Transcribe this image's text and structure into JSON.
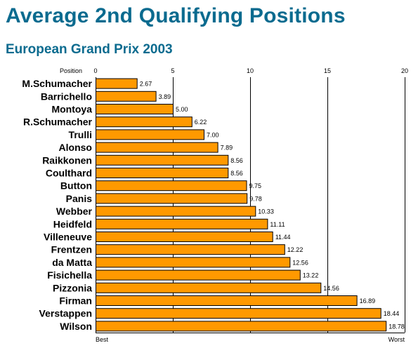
{
  "chart_data": {
    "type": "bar",
    "orientation": "horizontal",
    "title": "Average 2nd Qualifying Positions",
    "subtitle": "European Grand Prix 2003",
    "axis_title": "Position",
    "xlim": [
      0,
      20
    ],
    "xticks": [
      0,
      5,
      10,
      15,
      20
    ],
    "x_end_labels": {
      "min": "Best",
      "max": "Worst"
    },
    "grid": true,
    "bar_color": "#ff9900",
    "title_color": "#0b6b8f",
    "categories": [
      "M.Schumacher",
      "Barrichello",
      "Montoya",
      "R.Schumacher",
      "Trulli",
      "Alonso",
      "Raikkonen",
      "Coulthard",
      "Button",
      "Panis",
      "Webber",
      "Heidfeld",
      "Villeneuve",
      "Frentzen",
      "da Matta",
      "Fisichella",
      "Pizzonia",
      "Firman",
      "Verstappen",
      "Wilson"
    ],
    "values": [
      2.67,
      3.89,
      5.0,
      6.22,
      7.0,
      7.89,
      8.56,
      8.56,
      9.75,
      9.78,
      10.33,
      11.11,
      11.44,
      12.22,
      12.56,
      13.22,
      14.56,
      16.89,
      18.44,
      18.78
    ],
    "value_labels": [
      "2.67",
      "3.89",
      "5.00",
      "6.22",
      "7.00",
      "7.89",
      "8.56",
      "8.56",
      "9.75",
      "9.78",
      "10.33",
      "11.11",
      "11.44",
      "12.22",
      "12.56",
      "13.22",
      "14.56",
      "16.89",
      "18.44",
      "18.78"
    ]
  }
}
